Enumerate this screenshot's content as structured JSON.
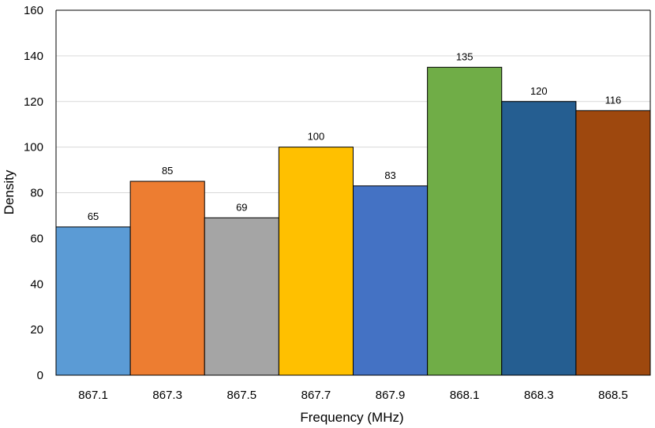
{
  "chart_data": {
    "type": "bar",
    "title": "",
    "xlabel": "Frequency (MHz)",
    "ylabel": "Density",
    "categories": [
      "867.1",
      "867.3",
      "867.5",
      "867.7",
      "867.9",
      "868.1",
      "868.3",
      "868.5"
    ],
    "values": [
      65,
      85,
      69,
      100,
      83,
      135,
      120,
      116
    ],
    "colors": [
      "#5b9bd5",
      "#ed7d31",
      "#a5a5a5",
      "#ffc000",
      "#4472c4",
      "#70ad47",
      "#255e91",
      "#9e480e"
    ],
    "ylim": [
      0,
      160
    ],
    "yticks": [
      0,
      20,
      40,
      60,
      80,
      100,
      120,
      140,
      160
    ],
    "grid": true,
    "bar_gap": 0,
    "data_labels": true
  }
}
